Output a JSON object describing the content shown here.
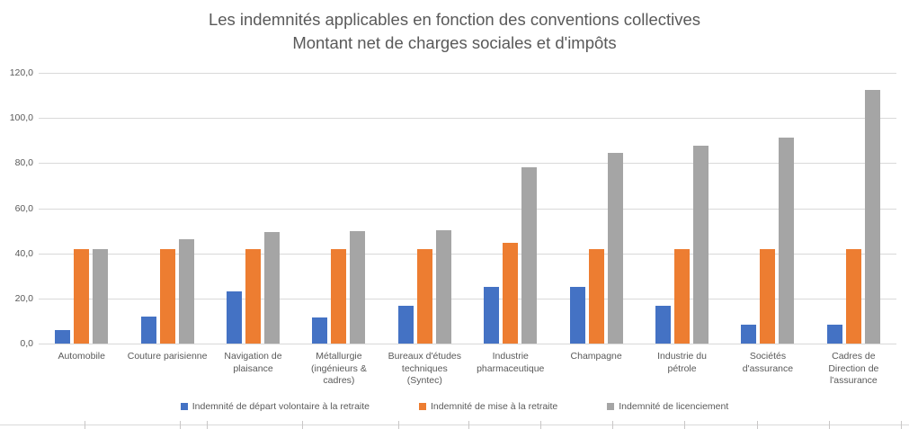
{
  "chart": {
    "title_lines": [
      "Les indemnités applicables en fonction des conventions collectives",
      "Montant net de charges sociales et d'impôts"
    ]
  },
  "chart_data": {
    "type": "bar",
    "title": "Les indemnités applicables en fonction des conventions collectives — Montant net de charges sociales et d'impôts",
    "categories": [
      "Automobile",
      "Couture parisienne",
      "Navigation de\nplaisance",
      "Métallurgie\n(ingénieurs &\ncadres)",
      "Bureaux d'études\ntechniques\n(Syntec)",
      "Industrie\npharmaceutique",
      "Champagne",
      "Industrie du\npétrole",
      "Sociétés\nd'assurance",
      "Cadres de\nDirection de\nl'assurance"
    ],
    "series": [
      {
        "name": "Indemnité de départ volontaire à la retraite",
        "color": "#4472C4",
        "values": [
          5.8,
          12.1,
          23.2,
          11.4,
          16.9,
          25.2,
          25.2,
          16.9,
          8.5,
          8.5
        ]
      },
      {
        "name": "Indemnité de mise à la retraite",
        "color": "#ED7D31",
        "values": [
          41.7,
          41.7,
          41.7,
          41.7,
          41.7,
          44.8,
          41.7,
          41.7,
          41.7,
          41.7
        ]
      },
      {
        "name": "Indemnité de licenciement",
        "color": "#A5A5A5",
        "values": [
          41.7,
          46.2,
          49.4,
          49.8,
          50.2,
          78.2,
          84.6,
          87.7,
          91.3,
          112.3
        ]
      }
    ],
    "ylim": [
      0,
      120
    ],
    "ytick_step": 20,
    "ytick_labels": [
      "0,0",
      "20,0",
      "40,0",
      "60,0",
      "80,0",
      "100,0",
      "120,0"
    ],
    "xlabel": "",
    "ylabel": "",
    "grid": true,
    "legend_position": "bottom"
  },
  "colors": {
    "series_blue": "#4472C4",
    "series_orange": "#ED7D31",
    "series_gray": "#A5A5A5",
    "title_text": "#595959",
    "axis_text": "#595959",
    "gridline": "#D9D9D9",
    "sheet_border": "#C9C7C7"
  }
}
